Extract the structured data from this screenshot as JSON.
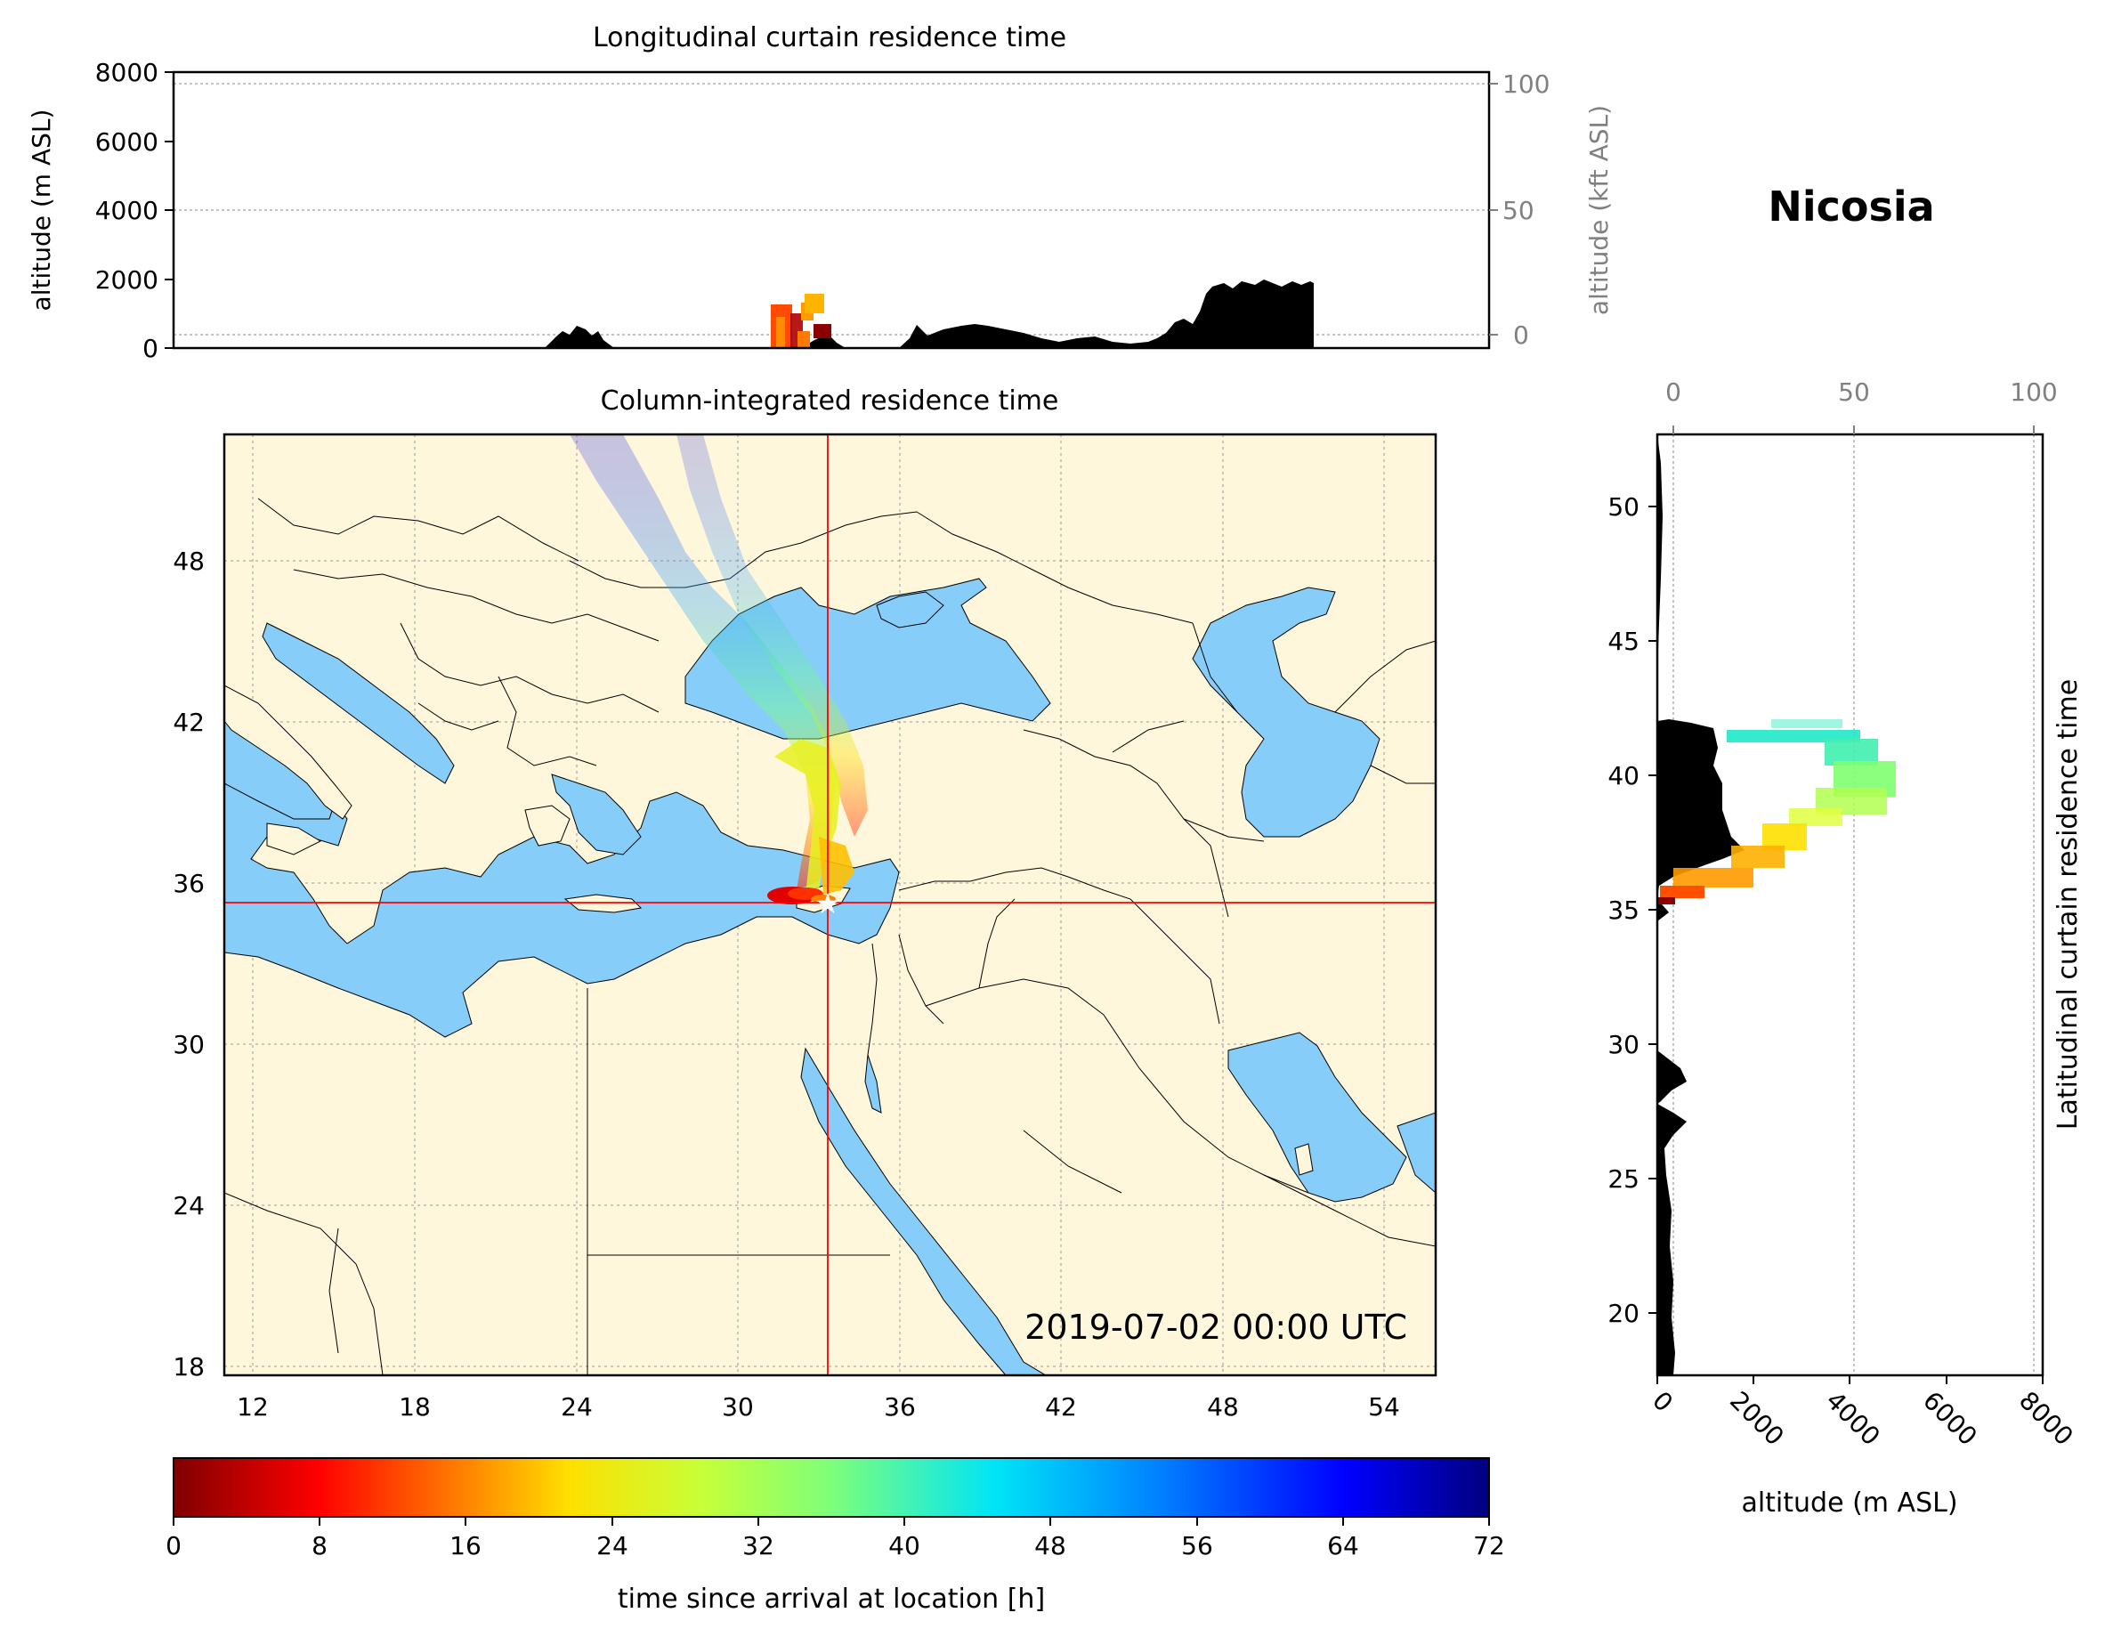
{
  "location_title": "Nicosia",
  "timestamp": "2019-07-02 00:00 UTC",
  "colors": {
    "sea": "#87cdf9",
    "land": "#fff7dc",
    "marker_lines": "#ff0000",
    "topography": "#000000"
  },
  "panels": {
    "top": {
      "title": "Longitudinal curtain residence time",
      "ylabel_left": "altitude (m ASL)",
      "ylabel_right": "altitude (kft ASL)",
      "yticks_left": [
        "0",
        "2000",
        "4000",
        "6000",
        "8000"
      ],
      "yticks_right": [
        "0",
        "50",
        "100"
      ],
      "ylim_m": [
        0,
        8000
      ]
    },
    "map": {
      "title": "Column-integrated residence time",
      "xticks": [
        "12",
        "18",
        "24",
        "30",
        "36",
        "42",
        "48",
        "54"
      ],
      "yticks": [
        "18",
        "24",
        "30",
        "36",
        "42",
        "48"
      ],
      "lon_range": [
        11,
        56
      ],
      "lat_range": [
        18,
        53
      ],
      "site": {
        "lon": 33.4,
        "lat": 35.2
      }
    },
    "right": {
      "ylabel": "Latitudinal curtain residence time",
      "xlabel": "altitude (m ASL)",
      "xticks_bottom": [
        "0",
        "2000",
        "4000",
        "6000",
        "8000"
      ],
      "xticks_top": [
        "0",
        "50",
        "100"
      ],
      "yticks": [
        "20",
        "25",
        "30",
        "35",
        "40",
        "45",
        "50"
      ],
      "lat_range": [
        17.7,
        52.7
      ]
    },
    "colorbar": {
      "label": "time since arrival at location [h]",
      "ticks": [
        "0",
        "8",
        "16",
        "24",
        "32",
        "40",
        "48",
        "56",
        "64",
        "72"
      ],
      "range": [
        0,
        72
      ]
    }
  }
}
